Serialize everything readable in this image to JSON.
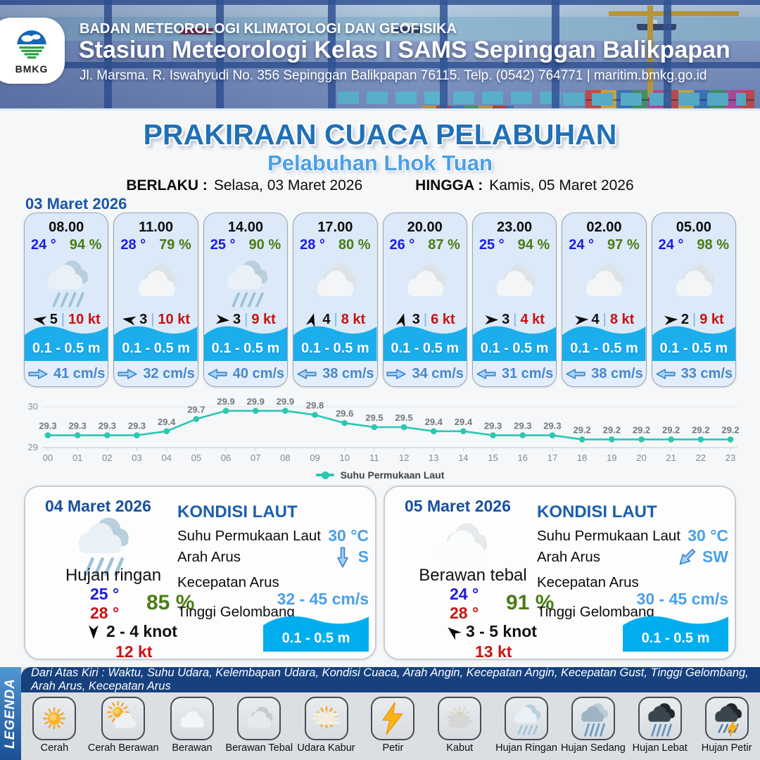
{
  "header": {
    "org": "BADAN METEOROLOGI KLIMATOLOGI DAN GEOFISIKA",
    "station": "Stasiun Meteorologi Kelas I SAMS Sepinggan Balikpapan",
    "address": "Jl. Marsma. R. Iswahyudi No. 356 Sepinggan Balikpapan 76115. Telp. (0542) 764771 | maritim.bmkg.go.id",
    "logo_text": "BMKG"
  },
  "title": {
    "main": "PRAKIRAAN CUACA PELABUHAN",
    "subtitle": "Pelabuhan Lhok Tuan",
    "berlaku_label": "BERLAKU :",
    "berlaku_value": "Selasa, 03 Maret 2026",
    "hingga_label": "HINGGA :",
    "hingga_value": "Kamis, 05 Maret 2026"
  },
  "forecast_date": "03 Maret 2026",
  "card_labels": {
    "sep": "|"
  },
  "cards": [
    {
      "time": "08.00",
      "temp": "24 °",
      "humidity": "94 %",
      "icon": "rain",
      "wind_rot": 190,
      "wind_speed": "5",
      "gust": "10 kt",
      "wave": "0.1 - 0.5 m",
      "current_rot": 0,
      "current": "41 cm/s"
    },
    {
      "time": "11.00",
      "temp": "28 °",
      "humidity": "79 %",
      "icon": "cloudy",
      "wind_rot": 190,
      "wind_speed": "3",
      "gust": "10 kt",
      "wave": "0.1 - 0.5 m",
      "current_rot": 0,
      "current": "32 cm/s"
    },
    {
      "time": "14.00",
      "temp": "25 °",
      "humidity": "90 %",
      "icon": "rain",
      "wind_rot": 5,
      "wind_speed": "3",
      "gust": "9 kt",
      "wave": "0.1 - 0.5 m",
      "current_rot": 180,
      "current": "40 cm/s"
    },
    {
      "time": "17.00",
      "temp": "28 °",
      "humidity": "80 %",
      "icon": "cloudy",
      "wind_rot": -75,
      "wind_speed": "4",
      "gust": "8 kt",
      "wave": "0.1 - 0.5 m",
      "current_rot": 180,
      "current": "38 cm/s"
    },
    {
      "time": "20.00",
      "temp": "26 °",
      "humidity": "87 %",
      "icon": "cloudy",
      "wind_rot": -75,
      "wind_speed": "3",
      "gust": "6 kt",
      "wave": "0.1 - 0.5 m",
      "current_rot": 0,
      "current": "34 cm/s"
    },
    {
      "time": "23.00",
      "temp": "25 °",
      "humidity": "94 %",
      "icon": "cloudy",
      "wind_rot": 0,
      "wind_speed": "3",
      "gust": "4 kt",
      "wave": "0.1 - 0.5 m",
      "current_rot": 180,
      "current": "31 cm/s"
    },
    {
      "time": "02.00",
      "temp": "24 °",
      "humidity": "97 %",
      "icon": "cloudy",
      "wind_rot": -5,
      "wind_speed": "4",
      "gust": "8 kt",
      "wave": "0.1 - 0.5 m",
      "current_rot": 180,
      "current": "38 cm/s"
    },
    {
      "time": "05.00",
      "temp": "24 °",
      "humidity": "98 %",
      "icon": "cloudy",
      "wind_rot": -5,
      "wind_speed": "2",
      "gust": "9 kt",
      "wave": "0.1 - 0.5 m",
      "current_rot": 180,
      "current": "33 cm/s"
    }
  ],
  "chart_data": {
    "type": "line",
    "series_name": "Suhu Permukaan Laut",
    "x": [
      "00",
      "01",
      "02",
      "03",
      "04",
      "05",
      "06",
      "07",
      "08",
      "09",
      "10",
      "11",
      "12",
      "13",
      "14",
      "15",
      "16",
      "17",
      "18",
      "19",
      "20",
      "21",
      "22",
      "23"
    ],
    "values": [
      29.3,
      29.3,
      29.3,
      29.3,
      29.4,
      29.7,
      29.9,
      29.9,
      29.9,
      29.8,
      29.6,
      29.5,
      29.5,
      29.4,
      29.4,
      29.3,
      29.3,
      29.3,
      29.2,
      29.2,
      29.2,
      29.2,
      29.2,
      29.2
    ],
    "ylim": [
      29,
      30
    ],
    "y_ticks": [
      29,
      30
    ],
    "grid": true,
    "legend_position": "bottom",
    "line_color": "#2cc7b2"
  },
  "panels": [
    {
      "date": "04 Maret 2026",
      "icon": "rain",
      "condition": "Hujan ringan",
      "temp_min": "25 °",
      "temp_max": "28 °",
      "humidity": "85 %",
      "wind": "2 - 4 knot",
      "wind_rot": 90,
      "gust": "12 kt",
      "sea": {
        "title": "KONDISI LAUT",
        "sst_label": "Suhu Permukaan Laut",
        "sst": "30 °C",
        "arah_label": "Arah Arus",
        "arah": "S",
        "arah_rot": 90,
        "kecepatan_label": "Kecepatan Arus",
        "kecepatan": "32 - 45 cm/s",
        "gelombang_label": "Tinggi Gelombang",
        "gelombang": "0.1 - 0.5 m"
      }
    },
    {
      "date": "05 Maret 2026",
      "icon": "cloud-plain",
      "condition": "Berawan tebal",
      "temp_min": "24 °",
      "temp_max": "28 °",
      "humidity": "91 %",
      "wind": "3 - 5 knot",
      "wind_rot": -140,
      "gust": "13 kt",
      "sea": {
        "title": "KONDISI LAUT",
        "sst_label": "Suhu Permukaan Laut",
        "sst": "30 °C",
        "arah_label": "Arah Arus",
        "arah": "SW",
        "arah_rot": 135,
        "kecepatan_label": "Kecepatan Arus",
        "kecepatan": "30 - 45 cm/s",
        "gelombang_label": "Tinggi Gelombang",
        "gelombang": "0.1 - 0.5 m"
      }
    }
  ],
  "legend": {
    "sidebar_label": "LEGENDA",
    "description": "Dari Atas Kiri : Waktu, Suhu Udara, Kelembapan Udara, Kondisi Cuaca, Arah Angin, Kecepatan Angin, Kecepatan Gust, Tinggi Gelombang, Arah Arus, Kecepatan Arus",
    "items": [
      {
        "label": "Cerah",
        "icon": "sun"
      },
      {
        "label": "Cerah Berawan",
        "icon": "sun-cloud"
      },
      {
        "label": "Berawan",
        "icon": "cloudy"
      },
      {
        "label": "Berawan Tebal",
        "icon": "cloud-thick"
      },
      {
        "label": "Udara Kabur",
        "icon": "haze"
      },
      {
        "label": "Petir",
        "icon": "thunder"
      },
      {
        "label": "Kabut",
        "icon": "fog"
      },
      {
        "label": "Hujan Ringan",
        "icon": "rain"
      },
      {
        "label": "Hujan Sedang",
        "icon": "rain-medium"
      },
      {
        "label": "Hujan Lebat",
        "icon": "rain-heavy"
      },
      {
        "label": "Hujan Petir",
        "icon": "thunder-rain"
      }
    ]
  },
  "colors": {
    "title_blue": "#2070b8",
    "subtitle_blue": "#4c9fe3",
    "wave_blue": "#1badec",
    "badge_blue": "#00aeef",
    "temp_blue": "#1a1ae6",
    "humidity_green": "#4a7c15",
    "gust_red": "#cc1111",
    "current_blue": "#4a86c9",
    "sst_teal": "#2cc7b2",
    "legend_strip_blue": "#16417e"
  }
}
